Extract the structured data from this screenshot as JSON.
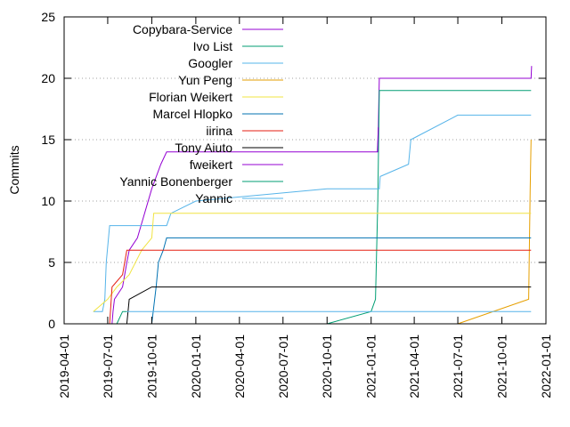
{
  "chart_data": {
    "type": "line",
    "title": "",
    "xlabel": "",
    "ylabel": "Commits",
    "xlim": [
      "2019-04-01",
      "2022-01-01"
    ],
    "ylim": [
      0,
      25
    ],
    "x_ticks": [
      "2019-04-01",
      "2019-07-01",
      "2019-10-01",
      "2020-01-01",
      "2020-04-01",
      "2020-07-01",
      "2020-10-01",
      "2021-01-01",
      "2021-04-01",
      "2021-07-01",
      "2021-10-01",
      "2022-01-01"
    ],
    "y_ticks": [
      0,
      5,
      10,
      15,
      20,
      25
    ],
    "grid": true,
    "legend_position": "top-left",
    "series": [
      {
        "name": "Copybara-Service",
        "color": "#9400d3",
        "points": [
          [
            "2019-07-10",
            0
          ],
          [
            "2019-07-12",
            1
          ],
          [
            "2019-07-15",
            2
          ],
          [
            "2019-08-01",
            3
          ],
          [
            "2019-08-10",
            5
          ],
          [
            "2019-08-15",
            6
          ],
          [
            "2019-09-01",
            7
          ],
          [
            "2019-10-01",
            11
          ],
          [
            "2019-10-20",
            13
          ],
          [
            "2019-11-01",
            14
          ],
          [
            "2021-01-15",
            14
          ],
          [
            "2021-01-18",
            20
          ],
          [
            "2021-12-01",
            20
          ],
          [
            "2021-12-02",
            21
          ]
        ]
      },
      {
        "name": "Ivo List",
        "color": "#009e73",
        "points": [
          [
            "2020-10-01",
            0
          ],
          [
            "2021-01-01",
            1
          ],
          [
            "2021-01-10",
            2
          ],
          [
            "2021-01-15",
            10
          ],
          [
            "2021-01-18",
            19
          ],
          [
            "2021-12-01",
            19
          ]
        ]
      },
      {
        "name": "Googler",
        "color": "#56b4e9",
        "points": [
          [
            "2019-06-01",
            1
          ],
          [
            "2019-06-20",
            1
          ],
          [
            "2019-06-25",
            2
          ],
          [
            "2019-06-28",
            5
          ],
          [
            "2019-07-05",
            8
          ],
          [
            "2019-11-01",
            8
          ],
          [
            "2019-11-10",
            9
          ],
          [
            "2020-01-01",
            10
          ],
          [
            "2020-10-01",
            11
          ],
          [
            "2021-01-18",
            11
          ],
          [
            "2021-01-20",
            12
          ],
          [
            "2021-03-20",
            13
          ],
          [
            "2021-03-25",
            15
          ],
          [
            "2021-07-01",
            17
          ],
          [
            "2021-12-01",
            17
          ]
        ]
      },
      {
        "name": "Yun Peng",
        "color": "#e69f00",
        "points": [
          [
            "2021-07-01",
            0
          ],
          [
            "2021-11-26",
            2
          ],
          [
            "2021-11-29",
            11
          ],
          [
            "2021-12-01",
            15
          ]
        ]
      },
      {
        "name": "Florian Weikert",
        "color": "#f0e442",
        "points": [
          [
            "2019-06-01",
            1
          ],
          [
            "2019-07-01",
            2
          ],
          [
            "2019-07-20",
            3
          ],
          [
            "2019-08-15",
            4
          ],
          [
            "2019-09-10",
            6
          ],
          [
            "2019-10-01",
            7
          ],
          [
            "2019-10-05",
            9
          ],
          [
            "2021-12-01",
            9
          ]
        ]
      },
      {
        "name": "Marcel Hlopko",
        "color": "#0072b2",
        "points": [
          [
            "2019-10-01",
            0
          ],
          [
            "2019-10-10",
            3
          ],
          [
            "2019-10-15",
            5
          ],
          [
            "2019-10-25",
            6
          ],
          [
            "2019-11-01",
            7
          ],
          [
            "2021-12-01",
            7
          ]
        ]
      },
      {
        "name": "iirina",
        "color": "#e51e10",
        "points": [
          [
            "2019-07-05",
            0
          ],
          [
            "2019-07-10",
            3
          ],
          [
            "2019-08-01",
            4
          ],
          [
            "2019-08-10",
            6
          ],
          [
            "2021-12-01",
            6
          ]
        ]
      },
      {
        "name": "Tony Aiuto",
        "color": "#000000",
        "points": [
          [
            "2019-08-10",
            0
          ],
          [
            "2019-08-15",
            2
          ],
          [
            "2019-10-01",
            3
          ],
          [
            "2021-12-01",
            3
          ]
        ]
      },
      {
        "name": "fweikert",
        "color": "#9400d3",
        "points": [
          [
            "2021-01-14",
            14
          ],
          [
            "2021-01-16",
            16
          ]
        ]
      },
      {
        "name": "Yannic Bonenberger",
        "color": "#009e73",
        "points": [
          [
            "2019-07-20",
            0
          ],
          [
            "2019-08-01",
            1
          ],
          [
            "2019-08-10",
            1
          ]
        ]
      },
      {
        "name": "Yannic",
        "color": "#56b4e9",
        "points": [
          [
            "2019-08-10",
            1
          ],
          [
            "2021-12-01",
            1
          ]
        ]
      }
    ]
  }
}
